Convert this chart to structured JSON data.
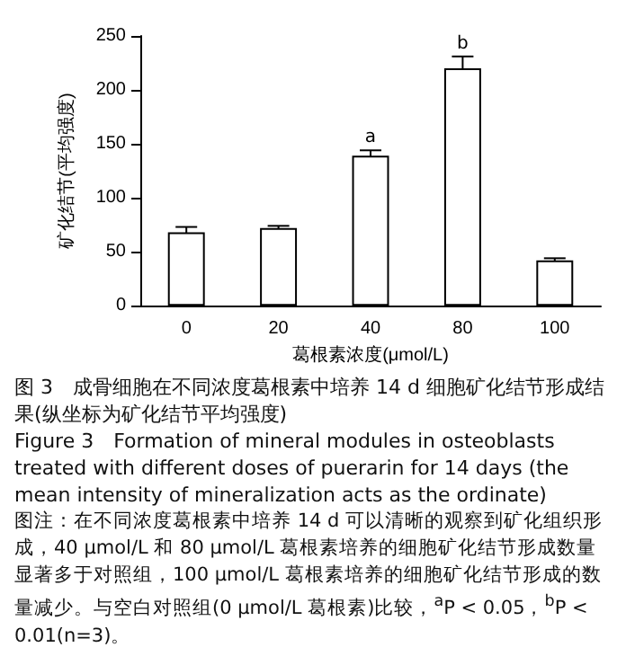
{
  "chart_data": {
    "type": "bar",
    "title": "图 3　成骨细胞在不同浓度葛根素中培养 14 d 细胞矿化结节形成结果(纵坐标为矿化结节平均强度)",
    "subtitle": "Figure 3　Formation of mineral modules in osteoblasts treated with different doses of puerarin for 14 days (the mean intensity of mineralization acts as the ordinate)",
    "xlabel": "葛根素浓度(μmol/L)",
    "ylabel": "矿化结节(平均强度)",
    "categories": [
      "0",
      "20",
      "40",
      "80",
      "100"
    ],
    "values": [
      68,
      72,
      139,
      220,
      42
    ],
    "errors": [
      5,
      2,
      5,
      11,
      2
    ],
    "color": "#ffffff",
    "ylim": [
      0,
      250
    ],
    "yticks": [
      0,
      50,
      100,
      150,
      200,
      250
    ],
    "annotations": [
      {
        "text": "a",
        "x": "40",
        "y": 144
      },
      {
        "text": "b",
        "x": "80",
        "y": 231
      },
      "图注：在不同浓度葛根素中培养 14 d 可以清晰的观察到矿化组织形成，40 μmol/L 和 80 μmol/L 葛根素培养的细胞矿化结节形成数量显著多于对照组，100 μmol/L 葛根素培养的细胞矿化结节形成的数量减少。与空白对照组(0 μmol/L 葛根素)比较，$^{a}$P < 0.05，$^{b}$P < 0.01(n=3)。"
    ]
  }
}
